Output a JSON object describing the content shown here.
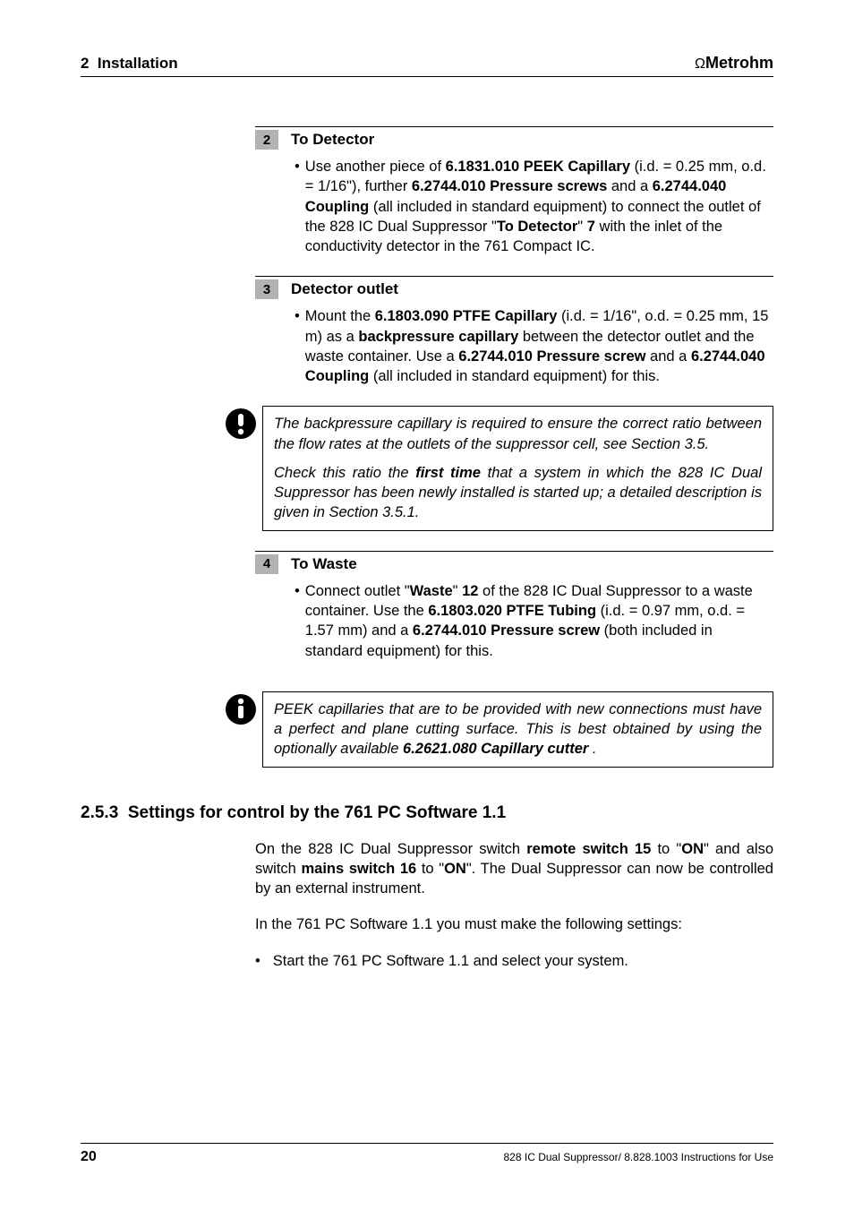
{
  "header": {
    "section_number": "2",
    "section_title": "Installation",
    "brand_prefix": "Ω",
    "brand": "Metrohm"
  },
  "steps": [
    {
      "num": "2",
      "title": "To Detector",
      "bullet": "Use another piece of <b>6.1831.010 PEEK Capillary</b> (i.d. = 0.25 mm, o.d. = 1/16\"), further <b>6.2744.010 Pressure screws</b> and a <b>6.2744.040 Coupling</b> (all included in standard equipment) to connect the outlet of the 828 IC Dual Suppressor \"<b>To Detector</b>\" <b>7</b> with the inlet of the conductivity detector in the 761 Compact IC."
    },
    {
      "num": "3",
      "title": "Detector outlet",
      "bullet": "Mount the <b>6.1803.090 PTFE Capillary</b> (i.d. = 1/16\", o.d. = 0.25 mm, 15 m) as a <b>backpressure capillary</b> between the detector outlet and the waste container. Use a <b>6.2744.010 Pressure screw</b> and a <b>6.2744.040 Coupling</b> (all included in standard equipment) for this."
    }
  ],
  "warning_note": {
    "p1": "The backpressure capillary is required to ensure the correct ratio between the flow rates at the outlets of the suppressor cell, see Section 3.5.",
    "p2": "Check this ratio the <span class=\"bi\">first time</span> that a system in which the 828 IC Dual Suppressor has been newly installed is started up; a detailed description is given in Section 3.5.1."
  },
  "step4": {
    "num": "4",
    "title": "To Waste",
    "bullet": "Connect outlet \"<b>Waste</b>\" <b>12</b> of the 828 IC Dual Suppressor to a waste container. Use the <b>6.1803.020 PTFE Tubing</b> (i.d. = 0.97 mm, o.d. = 1.57 mm) and a <b>6.2744.010 Pressure screw</b> (both included in standard equipment) for this."
  },
  "info_note": {
    "p1": "PEEK capillaries that are to be provided with new connections must have a perfect and plane cutting surface. This is best obtained by using the optionally available <span class=\"bi\">6.2621.080 Capillary cutter</span> ."
  },
  "section": {
    "number": "2.5.3",
    "title": "Settings for control by the 761 PC Software 1.1",
    "para1": "On the 828 IC Dual Suppressor switch <b>remote switch 15</b> to \"<b>ON</b>\" and also switch <b>mains switch 16</b> to \"<b>ON</b>\". The Dual Suppressor can now be controlled by an external instrument.",
    "para2": "In the 761 PC Software 1.1 you must make the following settings:",
    "bullet": "Start the 761 PC Software 1.1 and select your system."
  },
  "footer": {
    "page": "20",
    "doc": "828 IC Dual Suppressor/ 8.828.1003 Instructions for Use"
  },
  "colors": {
    "step_box_bg": "#b2b2b2",
    "text": "#000000",
    "background": "#ffffff"
  }
}
